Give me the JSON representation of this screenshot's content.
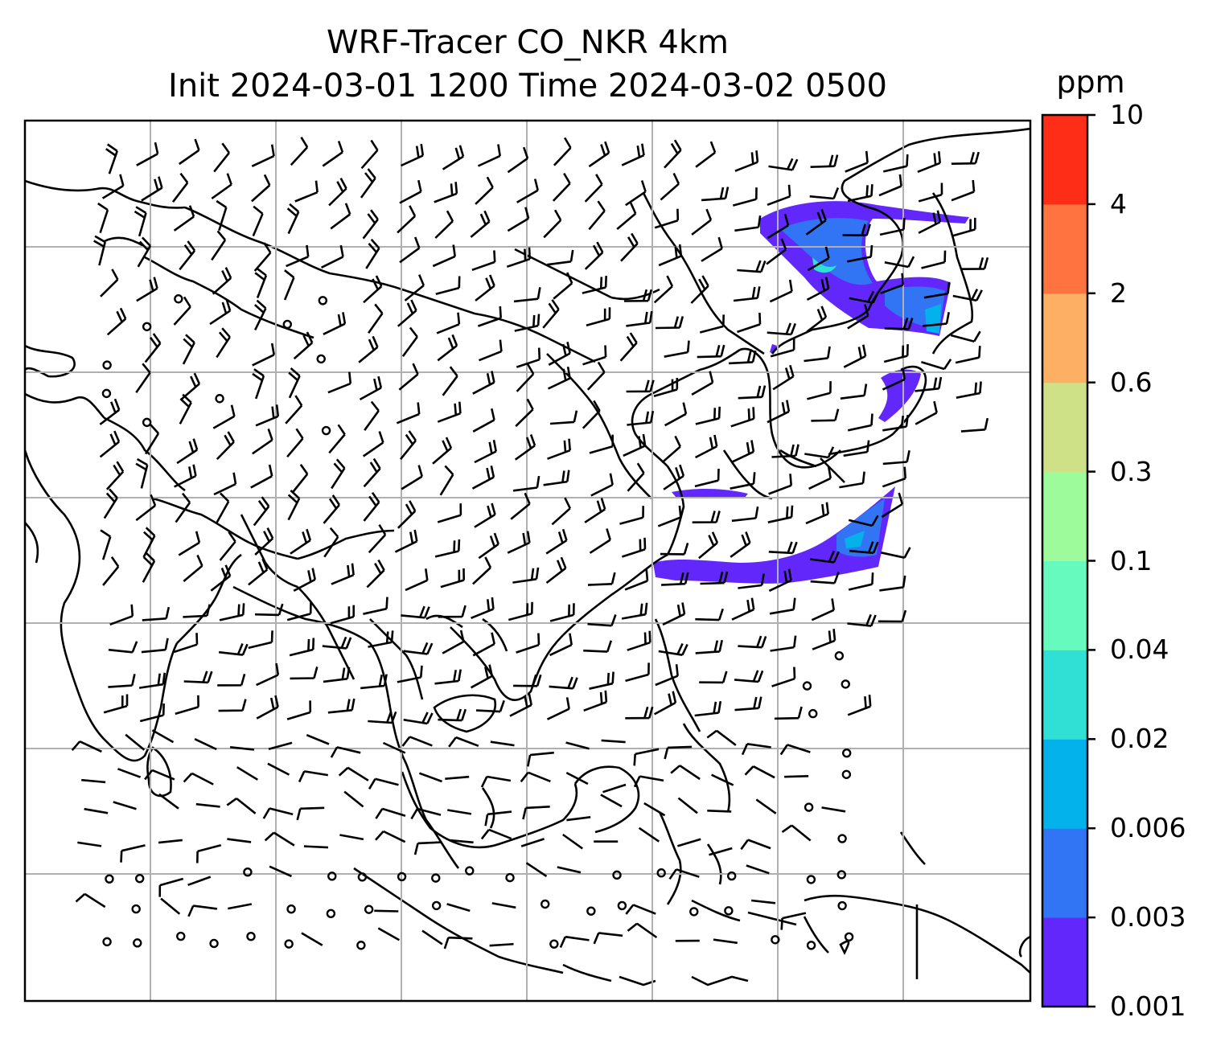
{
  "title_line1": "WRF-Tracer CO_NKR 4km",
  "title_line2": "Init 2024-03-01 1200 Time 2024-03-02 0500",
  "colorbar": {
    "unit": "ppm",
    "levels": [
      "0.001",
      "0.003",
      "0.006",
      "0.02",
      "0.04",
      "0.1",
      "0.3",
      "0.6",
      "2",
      "4",
      "10"
    ],
    "colors": [
      "#6228fb",
      "#3175f4",
      "#03b2ea",
      "#31e0d4",
      "#67fabe",
      "#9dfb9b",
      "#cee187",
      "#fdaf63",
      "#fe7340",
      "#fd2d17"
    ]
  },
  "map": {
    "grid_lines": true,
    "features": [
      "coastlines",
      "country borders",
      "wind barbs",
      "calm wind circles",
      "CO tracer plume"
    ]
  }
}
